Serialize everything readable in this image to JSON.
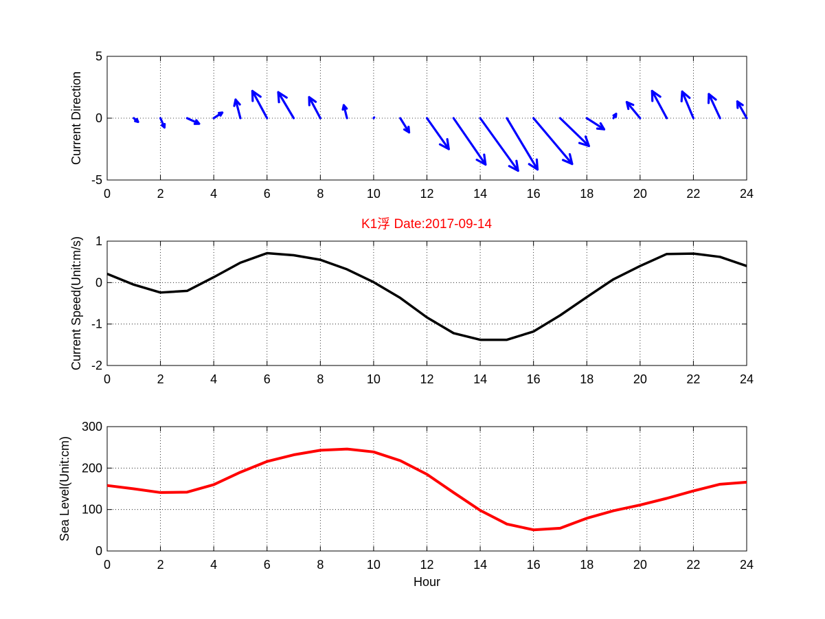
{
  "title": "K1浮   Date:2017-09-14",
  "colors": {
    "title": "#ff0000",
    "quiver": "#0000ff",
    "speed": "#000000",
    "sea_level": "#ff0000"
  },
  "chart_data": [
    {
      "type": "quiver",
      "ylabel": "Current Direction",
      "xlabel": "",
      "xlim": [
        0,
        24
      ],
      "ylim": [
        -5,
        5
      ],
      "xticks": [
        0,
        2,
        4,
        6,
        8,
        10,
        12,
        14,
        16,
        18,
        20,
        22,
        24
      ],
      "yticks": [
        -5,
        0,
        5
      ],
      "grid": true,
      "series": [
        {
          "x": [
            1,
            2,
            3,
            4,
            5,
            6,
            7,
            8,
            9,
            10,
            11,
            12,
            13,
            14,
            15,
            16,
            17,
            18,
            19,
            20,
            21,
            22,
            23,
            24
          ],
          "u": [
            0.16,
            0.15,
            0.45,
            0.32,
            -0.18,
            -0.55,
            -0.58,
            -0.42,
            -0.12,
            0.02,
            0.33,
            0.82,
            1.2,
            1.42,
            1.15,
            1.45,
            1.08,
            0.65,
            0.1,
            -0.5,
            -0.55,
            -0.42,
            -0.42,
            -0.35
          ],
          "v": [
            -0.3,
            -0.75,
            -0.45,
            0.45,
            1.5,
            2.2,
            2.1,
            1.7,
            1.05,
            0.06,
            -1.15,
            -2.5,
            -3.75,
            -4.25,
            -4.15,
            -3.7,
            -2.25,
            -0.9,
            0.35,
            1.3,
            2.2,
            2.15,
            1.95,
            1.35
          ]
        }
      ]
    },
    {
      "type": "line",
      "ylabel": "Current Speed(Unit:m/s)",
      "xlabel": "",
      "xlim": [
        0,
        24
      ],
      "ylim": [
        -2,
        1
      ],
      "xticks": [
        0,
        2,
        4,
        6,
        8,
        10,
        12,
        14,
        16,
        18,
        20,
        22,
        24
      ],
      "yticks": [
        -2,
        -1,
        0,
        1
      ],
      "grid": true,
      "x": [
        0,
        1,
        2,
        3,
        4,
        5,
        6,
        7,
        8,
        9,
        10,
        11,
        12,
        13,
        14,
        15,
        16,
        17,
        18,
        19,
        20,
        21,
        22,
        23,
        24
      ],
      "series": [
        {
          "values": [
            0.21,
            -0.05,
            -0.24,
            -0.2,
            0.13,
            0.48,
            0.71,
            0.66,
            0.55,
            0.32,
            0.01,
            -0.37,
            -0.84,
            -1.22,
            -1.38,
            -1.38,
            -1.18,
            -0.79,
            -0.35,
            0.08,
            0.4,
            0.69,
            0.7,
            0.62,
            0.4
          ]
        }
      ]
    },
    {
      "type": "line",
      "ylabel": "Sea Level(Unit:cm)",
      "xlabel": "Hour",
      "xlim": [
        0,
        24
      ],
      "ylim": [
        0,
        300
      ],
      "xticks": [
        0,
        2,
        4,
        6,
        8,
        10,
        12,
        14,
        16,
        18,
        20,
        22,
        24
      ],
      "yticks": [
        0,
        100,
        200,
        300
      ],
      "grid": true,
      "x": [
        0,
        1,
        2,
        3,
        4,
        5,
        6,
        7,
        8,
        9,
        10,
        11,
        12,
        13,
        14,
        15,
        16,
        17,
        18,
        19,
        20,
        21,
        22,
        23,
        24
      ],
      "series": [
        {
          "values": [
            158,
            150,
            141,
            142,
            160,
            190,
            216,
            232,
            243,
            246,
            239,
            218,
            185,
            141,
            98,
            65,
            51,
            55,
            79,
            97,
            111,
            127,
            145,
            161,
            166
          ]
        }
      ]
    }
  ]
}
